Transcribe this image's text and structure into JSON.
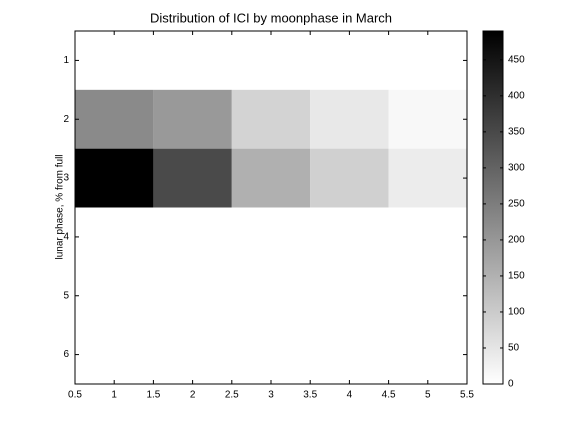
{
  "chart_data": {
    "type": "heatmap",
    "title": "Distribution of ICI by moonphase in March",
    "ylabel": "lunar phase, % from full",
    "x": [
      1,
      2,
      3,
      4,
      5
    ],
    "y": [
      1,
      2,
      3,
      4,
      5,
      6
    ],
    "values": [
      [
        0,
        0,
        0,
        0,
        0
      ],
      [
        225,
        196,
        85,
        44,
        14
      ],
      [
        490,
        348,
        152,
        90,
        36
      ],
      [
        0,
        0,
        0,
        0,
        0
      ],
      [
        0,
        0,
        0,
        0,
        0
      ],
      [
        0,
        0,
        0,
        0,
        0
      ]
    ],
    "xlim": [
      0.5,
      5.5
    ],
    "xticks": [
      0.5,
      1,
      1.5,
      2,
      2.5,
      3,
      3.5,
      4,
      4.5,
      5,
      5.5
    ],
    "ylim": [
      0.5,
      6.5
    ],
    "yticks": [
      1,
      2,
      3,
      4,
      5,
      6
    ],
    "y_reversed": true,
    "colormap": "gray_r",
    "clim": [
      0,
      490
    ],
    "cticks": [
      0,
      50,
      100,
      150,
      200,
      250,
      300,
      350,
      400,
      450
    ]
  }
}
